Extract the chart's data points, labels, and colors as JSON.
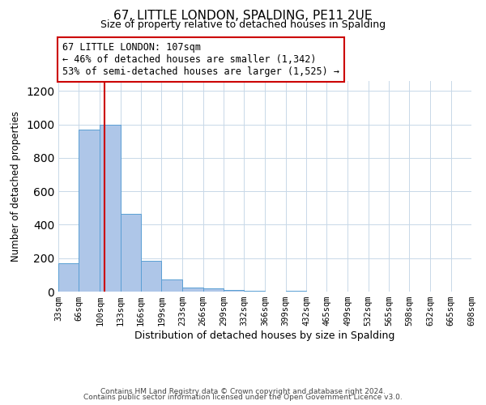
{
  "title": "67, LITTLE LONDON, SPALDING, PE11 2UE",
  "subtitle": "Size of property relative to detached houses in Spalding",
  "xlabel": "Distribution of detached houses by size in Spalding",
  "ylabel": "Number of detached properties",
  "bar_color": "#aec6e8",
  "bar_edge_color": "#5a9fd4",
  "bar_heights": [
    170,
    970,
    1000,
    465,
    185,
    75,
    25,
    20,
    12,
    5,
    0,
    5,
    0,
    0,
    0,
    0,
    0,
    0,
    0,
    0
  ],
  "bin_edges": [
    33,
    66,
    100,
    133,
    166,
    199,
    233,
    266,
    299,
    332,
    366,
    399,
    432,
    465,
    499,
    532,
    565,
    598,
    632,
    665,
    698
  ],
  "bin_labels": [
    "33sqm",
    "66sqm",
    "100sqm",
    "133sqm",
    "166sqm",
    "199sqm",
    "233sqm",
    "266sqm",
    "299sqm",
    "332sqm",
    "366sqm",
    "399sqm",
    "432sqm",
    "465sqm",
    "499sqm",
    "532sqm",
    "565sqm",
    "598sqm",
    "632sqm",
    "665sqm",
    "698sqm"
  ],
  "property_size": 107,
  "vline_color": "#cc0000",
  "annotation_line1": "67 LITTLE LONDON: 107sqm",
  "annotation_line2": "← 46% of detached houses are smaller (1,342)",
  "annotation_line3": "53% of semi-detached houses are larger (1,525) →",
  "annotation_box_color": "#ffffff",
  "annotation_box_edge": "#cc0000",
  "ylim": [
    0,
    1260
  ],
  "yticks": [
    0,
    200,
    400,
    600,
    800,
    1000,
    1200
  ],
  "footer_line1": "Contains HM Land Registry data © Crown copyright and database right 2024.",
  "footer_line2": "Contains public sector information licensed under the Open Government Licence v3.0.",
  "background_color": "#ffffff",
  "grid_color": "#c8d8e8"
}
